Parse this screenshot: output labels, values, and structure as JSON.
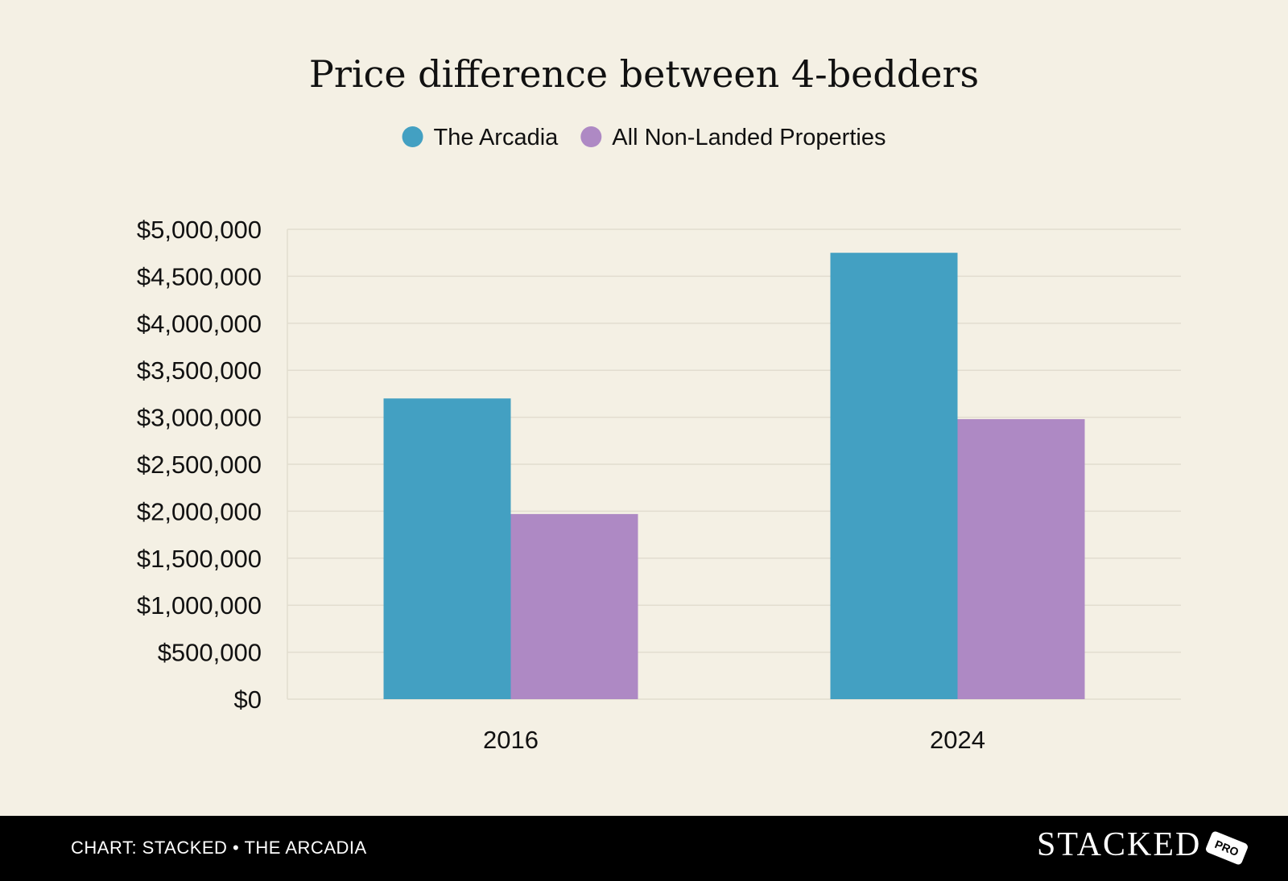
{
  "chart_data": {
    "type": "bar",
    "title": "Price difference between 4-bedders",
    "categories": [
      "2016",
      "2024"
    ],
    "series": [
      {
        "name": "The Arcadia",
        "color": "#43a0c2",
        "values": [
          3200000,
          4750000
        ]
      },
      {
        "name": "All Non-Landed Properties",
        "color": "#ae89c4",
        "values": [
          1970000,
          2980000
        ]
      }
    ],
    "ylim": [
      0,
      5000000
    ],
    "yticks": [
      0,
      500000,
      1000000,
      1500000,
      2000000,
      2500000,
      3000000,
      3500000,
      4000000,
      4500000,
      5000000
    ],
    "ytick_labels": [
      "$0",
      "$500,000",
      "$1,000,000",
      "$1,500,000",
      "$2,000,000",
      "$2,500,000",
      "$3,000,000",
      "$3,500,000",
      "$4,000,000",
      "$4,500,000",
      "$5,000,000"
    ],
    "grid": true,
    "legend": "top-center",
    "xlabel": "",
    "ylabel": ""
  },
  "footer": {
    "caption": "CHART: STACKED • THE ARCADIA",
    "logo_text": "STACKED",
    "logo_badge": "PRO"
  }
}
